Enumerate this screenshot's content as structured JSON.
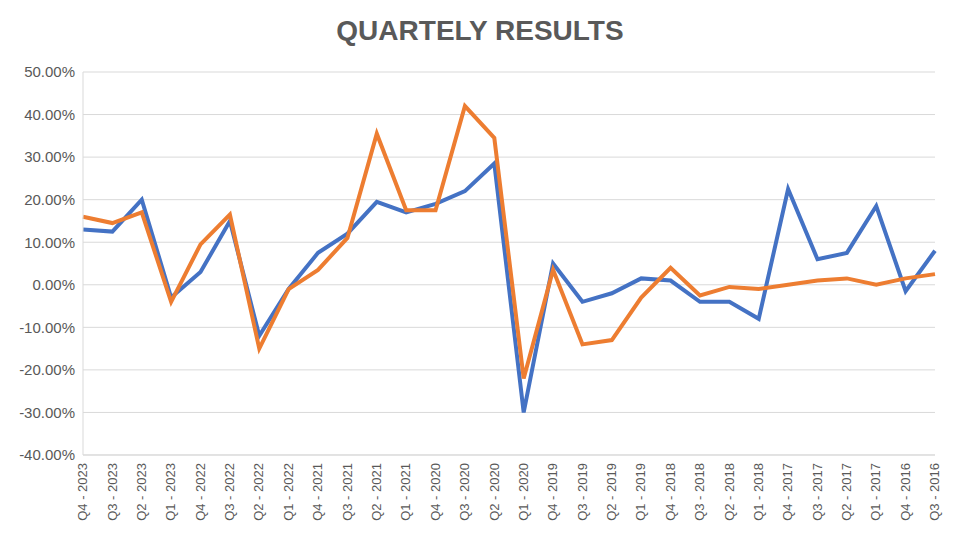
{
  "chart_data": {
    "type": "line",
    "title": "QUARTELY RESULTS",
    "categories": [
      "Q4 - 2023",
      "Q3 - 2023",
      "Q2 - 2023",
      "Q1 - 2023",
      "Q4 - 2022",
      "Q3 - 2022",
      "Q2 - 2022",
      "Q1 - 2022",
      "Q4 - 2021",
      "Q3 - 2021",
      "Q2 - 2021",
      "Q1 - 2021",
      "Q4 - 2020",
      "Q3 - 2020",
      "Q2 - 2020",
      "Q1 - 2020",
      "Q4 - 2019",
      "Q3 - 2019",
      "Q2 - 2019",
      "Q1 - 2019",
      "Q4 - 2018",
      "Q3 - 2018",
      "Q2 - 2018",
      "Q1 - 2018",
      "Q4 - 2017",
      "Q3 - 2017",
      "Q2 - 2017",
      "Q1 - 2017",
      "Q4 - 2016",
      "Q3 - 2016"
    ],
    "series": [
      {
        "color": "#4472c4",
        "values": [
          13,
          12.5,
          20,
          -3,
          3,
          15,
          -12,
          -1,
          7.5,
          12,
          19.5,
          17,
          19,
          22,
          28.5,
          -30,
          5,
          -4,
          -2,
          1.5,
          1,
          -4,
          -4,
          -8,
          22.5,
          6,
          7.5,
          18.5,
          -1.5,
          8
        ]
      },
      {
        "color": "#ed7d31",
        "values": [
          16,
          14.5,
          17,
          -4,
          9.5,
          16.5,
          -15,
          -1,
          3.5,
          11,
          35.5,
          17.5,
          17.5,
          42,
          34.5,
          -22,
          3.5,
          -14,
          -13,
          -3,
          4,
          -2.5,
          -0.5,
          -1,
          0,
          1,
          1.5,
          0,
          1.5,
          2.5
        ]
      }
    ],
    "ylim": [
      -40,
      50
    ],
    "yticks": [
      {
        "value": -40,
        "label": "-40.00%"
      },
      {
        "value": -30,
        "label": "-30.00%"
      },
      {
        "value": -20,
        "label": "-20.00%"
      },
      {
        "value": -10,
        "label": "-10.00%"
      },
      {
        "value": 0,
        "label": "0.00%"
      },
      {
        "value": 10,
        "label": "10.00%"
      },
      {
        "value": 20,
        "label": "20.00%"
      },
      {
        "value": 30,
        "label": "30.00%"
      },
      {
        "value": 40,
        "label": "40.00%"
      },
      {
        "value": 50,
        "label": "50.00%"
      }
    ],
    "grid": true
  }
}
